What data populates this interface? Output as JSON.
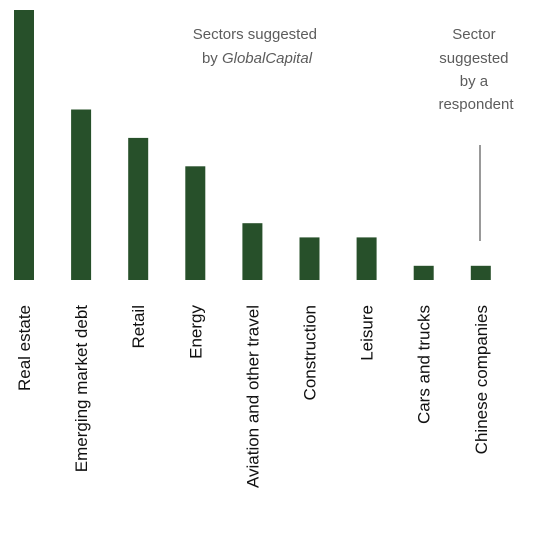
{
  "chart_data": {
    "type": "bar",
    "categories": [
      "Real estate",
      "Emerging market debt",
      "Retail",
      "Energy",
      "Aviation and other travel",
      "Construction",
      "Leisure",
      "Cars and trucks",
      "Chinese companies"
    ],
    "values": [
      19,
      12,
      10,
      8,
      4,
      3,
      3,
      1,
      1
    ],
    "ylim": [
      0,
      19
    ],
    "grid": false,
    "legend": "none",
    "bar_color": "#27502a",
    "annotations": {
      "left_line1": "Sectors suggested",
      "left_line2_prefix": "by ",
      "left_line2_em": "GlobalCapital",
      "right_lines": [
        "Sector",
        "suggested",
        "by a",
        "respondent"
      ]
    }
  }
}
